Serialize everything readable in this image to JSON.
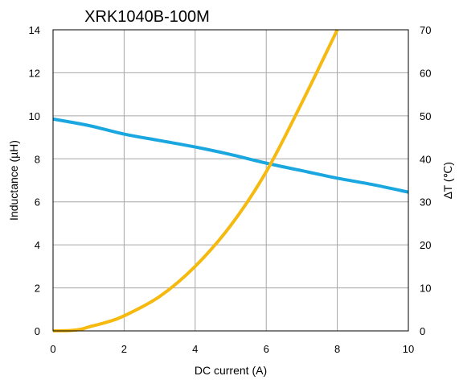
{
  "chart_data": {
    "type": "line",
    "title": "XRK1040B-100M",
    "xlabel": "DC current (A)",
    "ylabel": "Inductance (µH)",
    "y2label": "∆T (℃)",
    "xlim": [
      0,
      10
    ],
    "ylim": [
      0,
      14
    ],
    "y2lim": [
      0,
      70
    ],
    "xticks": [
      "0",
      "2",
      "4",
      "6",
      "8",
      "10"
    ],
    "yticks": [
      "0",
      "2",
      "4",
      "6",
      "8",
      "10",
      "12",
      "14"
    ],
    "y2ticks": [
      "0",
      "10",
      "20",
      "30",
      "40",
      "50",
      "60",
      "70"
    ],
    "grid": true,
    "series": [
      {
        "axis": "left",
        "color": "#1aa7e0",
        "x": [
          0,
          1,
          2,
          3,
          4,
          5,
          6,
          7,
          8,
          9,
          10
        ],
        "values": [
          9.85,
          9.55,
          9.15,
          8.85,
          8.55,
          8.2,
          7.8,
          7.45,
          7.1,
          6.8,
          6.45
        ]
      },
      {
        "axis": "right",
        "color": "#f5b90f",
        "x": [
          0,
          0.5,
          0.8,
          1,
          1.5,
          2,
          3,
          4,
          5,
          6,
          7,
          8
        ],
        "values": [
          0,
          0.1,
          0.4,
          0.9,
          2,
          3.5,
          8,
          15,
          24.5,
          37,
          53,
          70
        ]
      }
    ]
  }
}
